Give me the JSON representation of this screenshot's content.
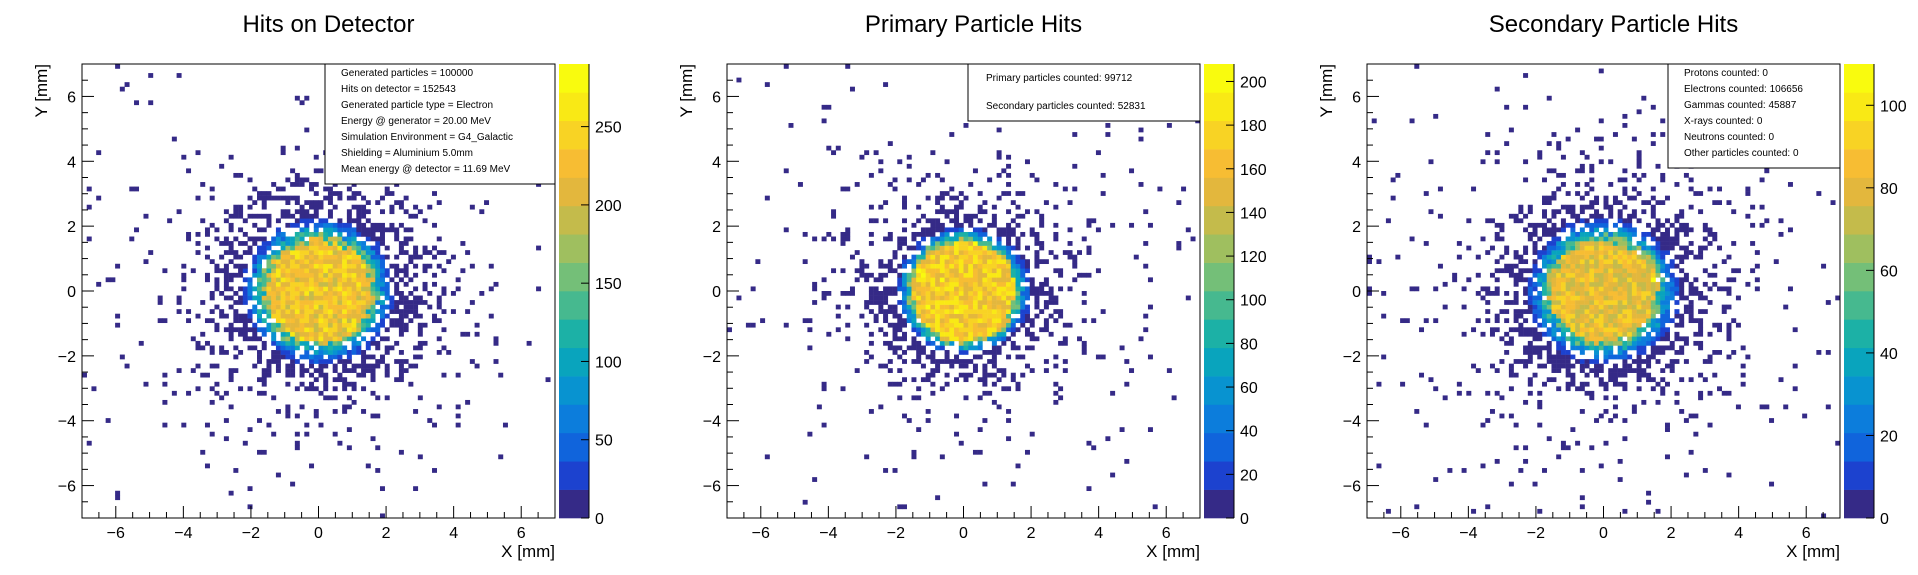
{
  "chart_data": [
    {
      "type": "heatmap",
      "title": "Hits on Detector",
      "xlabel": "X [mm]",
      "ylabel": "Y [mm]",
      "xlim": [
        -7,
        7
      ],
      "ylim": [
        -7,
        7
      ],
      "xticks": [
        -6,
        -4,
        -2,
        0,
        2,
        4,
        6
      ],
      "yticks": [
        -6,
        -4,
        -2,
        0,
        2,
        4,
        6
      ],
      "zlim": [
        0,
        290
      ],
      "zticks": [
        0,
        50,
        100,
        150,
        200,
        250
      ],
      "core": {
        "center": [
          0,
          0
        ],
        "core_radius_mm": 1.5,
        "peak_counts": 235,
        "halo_radius_mm": 2.6
      },
      "legend_position": "top-right",
      "stats": [
        "Generated particles = 100000",
        "Hits on detector = 152543",
        "Generated particle type = Electron",
        "Energy @ generator = 20.00 MeV",
        "Simulation Environment = G4_Galactic",
        "Shielding = Aluminium 5.0mm",
        "Mean energy @ detector = 11.69 MeV"
      ]
    },
    {
      "type": "heatmap",
      "title": "Primary Particle Hits",
      "xlabel": "X [mm]",
      "ylabel": "Y [mm]",
      "xlim": [
        -7,
        7
      ],
      "ylim": [
        -7,
        7
      ],
      "xticks": [
        -6,
        -4,
        -2,
        0,
        2,
        4,
        6
      ],
      "yticks": [
        -6,
        -4,
        -2,
        0,
        2,
        4,
        6
      ],
      "zlim": [
        0,
        208
      ],
      "zticks": [
        0,
        20,
        40,
        60,
        80,
        100,
        120,
        140,
        160,
        180,
        200
      ],
      "core": {
        "center": [
          0,
          0
        ],
        "core_radius_mm": 1.5,
        "peak_counts": 175,
        "halo_radius_mm": 2.2
      },
      "legend_position": "top-right",
      "stats": [
        "Primary particles counted: 99712",
        "Secondary particles counted: 52831"
      ]
    },
    {
      "type": "heatmap",
      "title": "Secondary Particle Hits",
      "xlabel": "X [mm]",
      "ylabel": "Y [mm]",
      "xlim": [
        -7,
        7
      ],
      "ylim": [
        -7,
        7
      ],
      "xticks": [
        -6,
        -4,
        -2,
        0,
        2,
        4,
        6
      ],
      "yticks": [
        -6,
        -4,
        -2,
        0,
        2,
        4,
        6
      ],
      "zlim": [
        0,
        110
      ],
      "zticks": [
        0,
        20,
        40,
        60,
        80,
        100
      ],
      "core": {
        "center": [
          0,
          0
        ],
        "core_radius_mm": 1.5,
        "peak_counts": 85,
        "halo_radius_mm": 2.6
      },
      "legend_position": "top-right",
      "stats": [
        "Protons counted: 0",
        "Electrons counted: 106656",
        "Gammas counted: 45887",
        "X-rays counted: 0",
        "Neutrons counted: 0",
        "Other particles counted: 0"
      ]
    }
  ],
  "palette": [
    "#352a87",
    "#1c42cf",
    "#1064dc",
    "#0c7ddc",
    "#0893d0",
    "#09a4bd",
    "#1cb1a6",
    "#46b98f",
    "#74bf78",
    "#9fbf5f",
    "#c4bb4b",
    "#e3b73d",
    "#f7bd33",
    "#f8d324",
    "#f9e915",
    "#f9fb0e"
  ]
}
